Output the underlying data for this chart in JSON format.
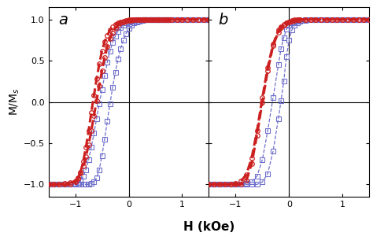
{
  "xlabel": "H (kOe)",
  "ylabel": "M/M$_s$",
  "ylim": [
    -1.15,
    1.15
  ],
  "yticks": [
    -1.0,
    -0.5,
    0.0,
    0.5,
    1.0
  ],
  "label_a": "a",
  "label_b": "b",
  "blue_color": "#7070cc",
  "red_color": "#cc2020",
  "panel_a": {
    "blue_H": [
      -1.5,
      -1.4,
      -1.3,
      -1.2,
      -1.1,
      -1.0,
      -0.95,
      -0.9,
      -0.85,
      -0.8,
      -0.75,
      -0.7,
      -0.65,
      -0.6,
      -0.55,
      -0.5,
      -0.45,
      -0.4,
      -0.35,
      -0.3,
      -0.25,
      -0.2,
      -0.15,
      -0.1,
      -0.05,
      0.0,
      0.05,
      0.1,
      0.15,
      0.2,
      0.25,
      0.3,
      0.35,
      0.4,
      0.45,
      0.5,
      0.55,
      0.6,
      0.65,
      0.7,
      0.75,
      0.8,
      0.9,
      1.0,
      1.1,
      1.2,
      1.3,
      1.4,
      1.5
    ],
    "blue_M_up": [
      -1.0,
      -1.0,
      -1.0,
      -1.0,
      -1.0,
      -1.0,
      -1.0,
      -1.0,
      -1.0,
      -1.0,
      -1.0,
      -0.99,
      -0.97,
      -0.92,
      -0.82,
      -0.65,
      -0.45,
      -0.23,
      -0.02,
      0.18,
      0.36,
      0.52,
      0.65,
      0.75,
      0.83,
      0.89,
      0.93,
      0.96,
      0.97,
      0.98,
      0.99,
      1.0,
      1.0,
      1.0,
      1.0,
      1.0,
      1.0,
      1.0,
      1.0,
      1.0,
      1.0,
      1.0,
      1.0,
      1.0,
      1.0,
      1.0,
      1.0,
      1.0,
      1.0
    ],
    "blue_M_dn": [
      -1.0,
      -1.0,
      -1.0,
      -1.0,
      -1.0,
      -0.99,
      -0.98,
      -0.95,
      -0.9,
      -0.82,
      -0.7,
      -0.55,
      -0.38,
      -0.2,
      -0.02,
      0.15,
      0.32,
      0.48,
      0.62,
      0.72,
      0.8,
      0.86,
      0.9,
      0.93,
      0.96,
      0.97,
      0.98,
      0.99,
      1.0,
      1.0,
      1.0,
      1.0,
      1.0,
      1.0,
      1.0,
      1.0,
      1.0,
      1.0,
      1.0,
      1.0,
      1.0,
      1.0,
      1.0,
      1.0,
      1.0,
      1.0,
      1.0,
      1.0,
      1.0
    ],
    "red_H": [
      -1.5,
      -1.4,
      -1.3,
      -1.2,
      -1.1,
      -1.0,
      -0.95,
      -0.9,
      -0.85,
      -0.8,
      -0.75,
      -0.7,
      -0.65,
      -0.6,
      -0.55,
      -0.5,
      -0.45,
      -0.4,
      -0.35,
      -0.3,
      -0.25,
      -0.2,
      -0.15,
      -0.1,
      -0.05,
      0.0,
      0.05,
      0.1,
      0.15,
      0.2,
      0.25,
      0.3,
      0.35,
      0.4,
      0.45,
      0.5,
      0.55,
      0.6,
      0.65,
      0.7,
      0.75,
      0.8,
      0.9,
      1.0,
      1.1,
      1.2,
      1.3,
      1.4,
      1.5
    ],
    "red_M_up": [
      -1.0,
      -1.0,
      -1.0,
      -1.0,
      -1.0,
      -0.97,
      -0.93,
      -0.85,
      -0.72,
      -0.55,
      -0.35,
      -0.13,
      0.08,
      0.28,
      0.46,
      0.62,
      0.73,
      0.81,
      0.87,
      0.91,
      0.94,
      0.96,
      0.97,
      0.98,
      0.99,
      1.0,
      1.0,
      1.0,
      1.0,
      1.0,
      1.0,
      1.0,
      1.0,
      1.0,
      1.0,
      1.0,
      1.0,
      1.0,
      1.0,
      1.0,
      1.0,
      1.0,
      1.0,
      1.0,
      1.0,
      1.0,
      1.0,
      1.0,
      1.0
    ],
    "red_M_dn": [
      -1.0,
      -1.0,
      -1.0,
      -0.99,
      -0.98,
      -0.96,
      -0.92,
      -0.86,
      -0.78,
      -0.66,
      -0.52,
      -0.35,
      -0.17,
      0.02,
      0.2,
      0.38,
      0.54,
      0.67,
      0.77,
      0.84,
      0.89,
      0.93,
      0.96,
      0.97,
      0.98,
      0.99,
      0.99,
      1.0,
      1.0,
      1.0,
      1.0,
      1.0,
      1.0,
      1.0,
      1.0,
      1.0,
      1.0,
      1.0,
      1.0,
      1.0,
      1.0,
      1.0,
      1.0,
      1.0,
      1.0,
      1.0,
      1.0,
      1.0,
      1.0
    ]
  },
  "panel_b": {
    "blue_H": [
      -1.5,
      -1.4,
      -1.3,
      -1.2,
      -1.1,
      -1.0,
      -0.9,
      -0.8,
      -0.7,
      -0.6,
      -0.5,
      -0.4,
      -0.3,
      -0.2,
      -0.15,
      -0.1,
      -0.05,
      0.0,
      0.05,
      0.1,
      0.15,
      0.2,
      0.3,
      0.4,
      0.5,
      0.6,
      0.7,
      0.8,
      0.9,
      1.0,
      1.1,
      1.2,
      1.3,
      1.4,
      1.5
    ],
    "blue_M_up": [
      -1.0,
      -1.0,
      -1.0,
      -1.0,
      -1.0,
      -1.0,
      -1.0,
      -1.0,
      -1.0,
      -1.0,
      -0.97,
      -0.87,
      -0.6,
      -0.2,
      0.02,
      0.25,
      0.55,
      0.75,
      0.87,
      0.93,
      0.96,
      0.98,
      0.99,
      1.0,
      1.0,
      1.0,
      1.0,
      1.0,
      1.0,
      1.0,
      1.0,
      1.0,
      1.0,
      1.0,
      1.0
    ],
    "blue_M_dn": [
      -1.0,
      -1.0,
      -1.0,
      -1.0,
      -1.0,
      -1.0,
      -1.0,
      -0.99,
      -0.97,
      -0.9,
      -0.7,
      -0.35,
      0.05,
      0.45,
      0.65,
      0.78,
      0.88,
      0.93,
      0.96,
      0.97,
      0.98,
      0.99,
      1.0,
      1.0,
      1.0,
      1.0,
      1.0,
      1.0,
      1.0,
      1.0,
      1.0,
      1.0,
      1.0,
      1.0,
      1.0
    ],
    "red_H": [
      -1.5,
      -1.4,
      -1.3,
      -1.2,
      -1.1,
      -1.0,
      -0.9,
      -0.8,
      -0.7,
      -0.6,
      -0.5,
      -0.4,
      -0.3,
      -0.2,
      -0.15,
      -0.1,
      -0.05,
      0.0,
      0.05,
      0.1,
      0.15,
      0.2,
      0.3,
      0.4,
      0.5,
      0.6,
      0.7,
      0.8,
      0.9,
      1.0,
      1.1,
      1.2,
      1.3,
      1.4,
      1.5
    ],
    "red_M_up": [
      -1.0,
      -1.0,
      -1.0,
      -1.0,
      -1.0,
      -1.0,
      -1.0,
      -0.95,
      -0.75,
      -0.4,
      0.0,
      0.38,
      0.68,
      0.85,
      0.9,
      0.93,
      0.96,
      0.97,
      0.98,
      0.99,
      1.0,
      1.0,
      1.0,
      1.0,
      1.0,
      1.0,
      1.0,
      1.0,
      1.0,
      1.0,
      1.0,
      1.0,
      1.0,
      1.0,
      1.0
    ],
    "red_M_dn": [
      -1.0,
      -1.0,
      -1.0,
      -1.0,
      -1.0,
      -0.99,
      -0.96,
      -0.88,
      -0.68,
      -0.35,
      0.05,
      0.42,
      0.7,
      0.87,
      0.91,
      0.94,
      0.96,
      0.97,
      0.99,
      1.0,
      1.0,
      1.0,
      1.0,
      1.0,
      1.0,
      1.0,
      1.0,
      1.0,
      1.0,
      1.0,
      1.0,
      1.0,
      1.0,
      1.0,
      1.0
    ]
  }
}
